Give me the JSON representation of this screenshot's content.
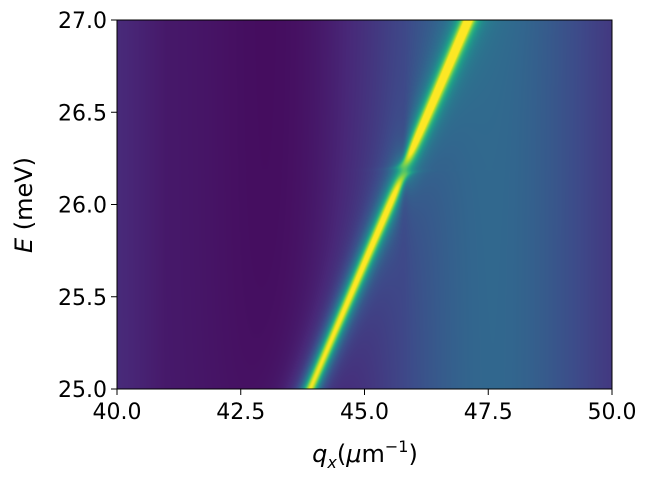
{
  "chart_data": {
    "type": "heatmap",
    "colormap": "viridis",
    "xlabel": "q_x(μm⁻¹)",
    "xlabel_parts": {
      "var": "q",
      "sub": "x",
      "unit_open": "(",
      "mu": "μ",
      "unit": "m",
      "sup": "−1",
      "unit_close": ")"
    },
    "ylabel": "E (meV)",
    "ylabel_parts": {
      "var": "E",
      "unit": " (meV)"
    },
    "xlim": [
      40.0,
      50.0
    ],
    "ylim": [
      25.0,
      27.0
    ],
    "xticks": [
      40.0,
      42.5,
      45.0,
      47.5,
      50.0
    ],
    "xtick_labels": [
      "40.0",
      "42.5",
      "45.0",
      "47.5",
      "50.0"
    ],
    "yticks": [
      25.0,
      25.5,
      26.0,
      26.5,
      27.0
    ],
    "ytick_labels": [
      "25.0",
      "25.5",
      "26.0",
      "26.5",
      "27.0"
    ],
    "features": {
      "exciton_energy": 26.185,
      "exciton_tilt_per_um_inv": 0.0023,
      "photon_branch": {
        "q_at_25": 43.9,
        "q_at_27": 47.1
      },
      "anticrossing_q": 45.8,
      "coupling_gap": 0.04
    },
    "colors": {
      "viridis": [
        "#440154",
        "#482878",
        "#3e4989",
        "#31688e",
        "#26828e",
        "#1f9e89",
        "#35b779",
        "#6ece58",
        "#b5de2b",
        "#fde725"
      ]
    }
  }
}
